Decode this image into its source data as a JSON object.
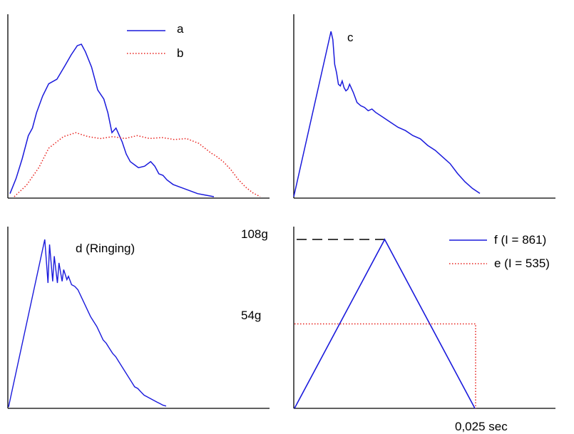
{
  "colors": {
    "blue": "#1a1adc",
    "red": "#e8201c",
    "black": "#000000"
  },
  "chart_data": [
    {
      "type": "line",
      "panel": "top-left",
      "legend_position": "top-right",
      "series": [
        {
          "name": "a",
          "color": "#1a1adc",
          "style": "solid",
          "x": [
            0,
            0.03,
            0.06,
            0.09,
            0.11,
            0.13,
            0.16,
            0.19,
            0.23,
            0.27,
            0.3,
            0.33,
            0.35,
            0.37,
            0.4,
            0.43,
            0.46,
            0.48,
            0.5,
            0.52,
            0.55,
            0.57,
            0.59,
            0.61,
            0.63,
            0.66,
            0.69,
            0.71,
            0.73,
            0.75,
            0.77,
            0.8,
            0.84,
            0.88,
            0.92,
            0.96,
            1.0
          ],
          "y": [
            0.02,
            0.12,
            0.25,
            0.4,
            0.45,
            0.55,
            0.66,
            0.74,
            0.77,
            0.86,
            0.93,
            0.99,
            1.0,
            0.95,
            0.85,
            0.7,
            0.64,
            0.55,
            0.42,
            0.45,
            0.36,
            0.28,
            0.23,
            0.21,
            0.19,
            0.2,
            0.23,
            0.2,
            0.15,
            0.14,
            0.11,
            0.08,
            0.06,
            0.04,
            0.02,
            0.01,
            0.0
          ]
        },
        {
          "name": "b",
          "color": "#e8201c",
          "style": "dotted",
          "x": [
            0,
            0.05,
            0.1,
            0.14,
            0.17,
            0.2,
            0.25,
            0.3,
            0.35,
            0.4,
            0.45,
            0.5,
            0.55,
            0.6,
            0.65,
            0.7,
            0.75,
            0.8,
            0.82,
            0.85,
            0.88,
            0.91,
            0.94,
            0.97,
            1.0
          ],
          "y": [
            0.0,
            0.12,
            0.3,
            0.5,
            0.56,
            0.62,
            0.66,
            0.62,
            0.6,
            0.62,
            0.6,
            0.63,
            0.6,
            0.61,
            0.59,
            0.6,
            0.55,
            0.45,
            0.42,
            0.36,
            0.28,
            0.18,
            0.1,
            0.04,
            0.0
          ]
        }
      ],
      "legend": [
        "a",
        "b"
      ]
    },
    {
      "type": "line",
      "panel": "top-right",
      "series": [
        {
          "name": "c",
          "color": "#1a1adc",
          "style": "solid",
          "x": [
            0,
            0.2,
            0.21,
            0.22,
            0.23,
            0.24,
            0.25,
            0.26,
            0.27,
            0.28,
            0.29,
            0.3,
            0.32,
            0.34,
            0.36,
            0.38,
            0.4,
            0.42,
            0.44,
            0.48,
            0.52,
            0.56,
            0.6,
            0.64,
            0.68,
            0.72,
            0.76,
            0.8,
            0.84,
            0.88,
            0.92,
            0.96,
            1.0
          ],
          "y": [
            0.0,
            1.0,
            0.95,
            0.8,
            0.75,
            0.68,
            0.67,
            0.7,
            0.66,
            0.64,
            0.65,
            0.68,
            0.63,
            0.57,
            0.55,
            0.54,
            0.52,
            0.53,
            0.51,
            0.48,
            0.45,
            0.42,
            0.4,
            0.37,
            0.35,
            0.31,
            0.28,
            0.24,
            0.2,
            0.14,
            0.09,
            0.05,
            0.02
          ]
        }
      ],
      "label": "c"
    },
    {
      "type": "line",
      "panel": "bottom-left",
      "series": [
        {
          "name": "d (Ringing)",
          "color": "#1a1adc",
          "style": "solid",
          "x": [
            0,
            0.23,
            0.25,
            0.26,
            0.28,
            0.29,
            0.31,
            0.32,
            0.34,
            0.35,
            0.37,
            0.38,
            0.4,
            0.42,
            0.44,
            0.46,
            0.48,
            0.5,
            0.52,
            0.54,
            0.56,
            0.58,
            0.6,
            0.62,
            0.64,
            0.66,
            0.68,
            0.7,
            0.72,
            0.74,
            0.76,
            0.78,
            0.8,
            0.82,
            0.84,
            0.86,
            0.88,
            0.9,
            0.92,
            0.94,
            0.96,
            0.98,
            1.0
          ],
          "y": [
            0.0,
            1.0,
            0.74,
            0.97,
            0.75,
            0.9,
            0.74,
            0.86,
            0.75,
            0.82,
            0.76,
            0.78,
            0.73,
            0.72,
            0.7,
            0.66,
            0.62,
            0.58,
            0.54,
            0.51,
            0.48,
            0.44,
            0.4,
            0.38,
            0.35,
            0.32,
            0.3,
            0.27,
            0.24,
            0.21,
            0.18,
            0.15,
            0.12,
            0.11,
            0.09,
            0.07,
            0.06,
            0.05,
            0.04,
            0.03,
            0.02,
            0.01,
            0.005
          ]
        }
      ],
      "label": "d (Ringing)"
    },
    {
      "type": "line",
      "panel": "bottom-right",
      "legend_position": "top-right",
      "series": [
        {
          "name": "f (I = 861)",
          "color": "#1a1adc",
          "style": "solid",
          "x": [
            0,
            0.0125,
            0.025
          ],
          "y": [
            0,
            108,
            0
          ]
        },
        {
          "name": "e (I = 535)",
          "color": "#e8201c",
          "style": "dotted",
          "x": [
            0,
            0.025,
            0.025
          ],
          "y": [
            54,
            54,
            0
          ]
        }
      ],
      "legend": [
        "f (I = 861)",
        "e (I = 535)"
      ],
      "ytick_labels": [
        "108g",
        "54g"
      ],
      "yticks": [
        108,
        54
      ],
      "xtick_labels": [
        "0,025 sec"
      ],
      "xticks": [
        0.025
      ],
      "ylim": [
        0,
        108
      ]
    }
  ]
}
